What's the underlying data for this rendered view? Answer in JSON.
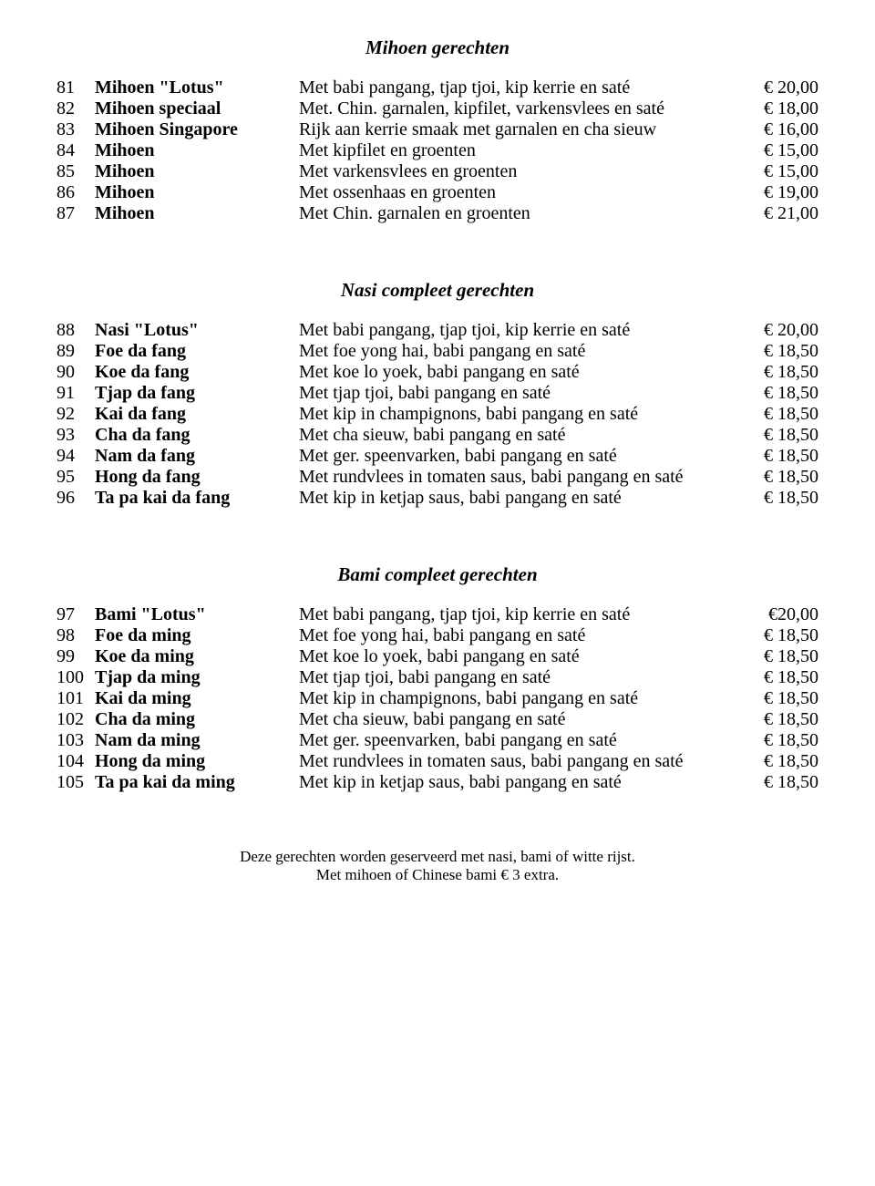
{
  "sections": [
    {
      "title": "Mihoen gerechten",
      "items": [
        {
          "num": "81",
          "name": "Mihoen \"Lotus\"",
          "desc": "Met babi pangang, tjap tjoi, kip kerrie en saté",
          "price": "€ 20,00"
        },
        {
          "num": "82",
          "name": "Mihoen speciaal",
          "desc": "Met. Chin. garnalen, kipfilet, varkensvlees en saté",
          "price": "€ 18,00"
        },
        {
          "num": "83",
          "name": "Mihoen Singapore",
          "desc": "Rijk aan kerrie smaak met garnalen en cha sieuw",
          "price": "€ 16,00"
        },
        {
          "num": "84",
          "name": "Mihoen",
          "desc": "Met kipfilet en groenten",
          "price": "€ 15,00"
        },
        {
          "num": "85",
          "name": "Mihoen",
          "desc": "Met varkensvlees en groenten",
          "price": "€ 15,00"
        },
        {
          "num": "86",
          "name": "Mihoen",
          "desc": "Met ossenhaas en groenten",
          "price": "€ 19,00"
        },
        {
          "num": "87",
          "name": "Mihoen",
          "desc": "Met Chin. garnalen en groenten",
          "price": "€ 21,00"
        }
      ]
    },
    {
      "title": "Nasi compleet gerechten",
      "items": [
        {
          "num": "88",
          "name": "Nasi \"Lotus\"",
          "desc": "Met babi pangang, tjap tjoi, kip kerrie en saté",
          "price": "€ 20,00"
        },
        {
          "num": "89",
          "name": "Foe da fang",
          "desc": "Met foe yong hai, babi pangang en saté",
          "price": "€ 18,50"
        },
        {
          "num": "90",
          "name": "Koe da fang",
          "desc": "Met koe lo yoek, babi pangang en saté",
          "price": "€ 18,50"
        },
        {
          "num": "91",
          "name": "Tjap da fang",
          "desc": "Met tjap tjoi, babi pangang en saté",
          "price": "€ 18,50"
        },
        {
          "num": "92",
          "name": "Kai da fang",
          "desc": "Met kip in champignons, babi pangang en saté",
          "price": "€ 18,50"
        },
        {
          "num": "93",
          "name": "Cha da fang",
          "desc": "Met cha sieuw, babi pangang en saté",
          "price": "€ 18,50"
        },
        {
          "num": "94",
          "name": "Nam da fang",
          "desc": "Met ger. speenvarken, babi pangang en saté",
          "price": "€ 18,50"
        },
        {
          "num": "95",
          "name": "Hong da fang",
          "desc": "Met rundvlees in tomaten saus, babi pangang en saté",
          "price": "€ 18,50"
        },
        {
          "num": "96",
          "name": "Ta pa kai da fang",
          "desc": "Met kip in ketjap saus, babi pangang en saté",
          "price": "€ 18,50"
        }
      ]
    },
    {
      "title": "Bami compleet gerechten",
      "items": [
        {
          "num": "97",
          "name": "Bami \"Lotus\"",
          "desc": "Met babi pangang, tjap tjoi, kip kerrie en saté",
          "price": "€20,00"
        },
        {
          "num": "98",
          "name": "Foe da ming",
          "desc": "Met foe yong hai, babi pangang en saté",
          "price": "€ 18,50"
        },
        {
          "num": "99",
          "name": "Koe da ming",
          "desc": "Met koe lo yoek, babi pangang en saté",
          "price": "€ 18,50"
        },
        {
          "num": "100",
          "name": "Tjap da ming",
          "desc": "Met tjap tjoi, babi pangang en saté",
          "price": "€ 18,50"
        },
        {
          "num": "101",
          "name": "Kai da ming",
          "desc": "Met kip in champignons, babi pangang en  saté",
          "price": "€ 18,50"
        },
        {
          "num": "102",
          "name": "Cha da ming",
          "desc": "Met cha sieuw, babi pangang en saté",
          "price": "€ 18,50"
        },
        {
          "num": "103",
          "name": "Nam da ming",
          "desc": "Met ger. speenvarken, babi pangang en saté",
          "price": "€ 18,50"
        },
        {
          "num": "104",
          "name": "Hong da ming",
          "desc": "Met rundvlees in tomaten saus, babi pangang en saté",
          "price": "€ 18,50"
        },
        {
          "num": "105",
          "name": "Ta pa kai da ming",
          "desc": "Met kip in ketjap saus, babi pangang en saté",
          "price": "€ 18,50"
        }
      ]
    }
  ],
  "footer": {
    "line1": "Deze gerechten worden geserveerd met nasi, bami of witte rijst.",
    "line2": "Met mihoen of Chinese bami € 3 extra."
  }
}
